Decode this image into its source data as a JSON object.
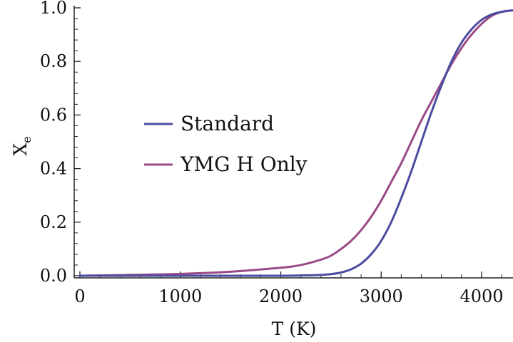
{
  "chart_data": {
    "type": "line",
    "xlabel": "T (K)",
    "ylabel": "X",
    "ylabel_sub": "e",
    "xlim": [
      0,
      4350
    ],
    "ylim": [
      0,
      1.0
    ],
    "x_ticks": [
      "0",
      "1000",
      "2000",
      "3000",
      "4000"
    ],
    "y_ticks": [
      "0.0",
      "0.2",
      "0.4",
      "0.6",
      "0.8",
      "1.0"
    ],
    "legend_position": "center-left",
    "series": [
      {
        "name": "Standard",
        "color": "#4b4ba0",
        "x": [
          0,
          500,
          1000,
          1500,
          2000,
          2200,
          2400,
          2500,
          2600,
          2700,
          2800,
          2900,
          3000,
          3100,
          3200,
          3300,
          3400,
          3500,
          3600,
          3700,
          3800,
          3900,
          4000,
          4100,
          4200,
          4300,
          4350
        ],
        "y": [
          0.0,
          0.0,
          0.0,
          0.0,
          0.0,
          0.001,
          0.003,
          0.006,
          0.012,
          0.024,
          0.045,
          0.08,
          0.13,
          0.2,
          0.29,
          0.39,
          0.5,
          0.61,
          0.71,
          0.8,
          0.87,
          0.92,
          0.955,
          0.975,
          0.985,
          0.99,
          0.99
        ]
      },
      {
        "name": "YMG H Only",
        "color": "#9a4a86",
        "x": [
          0,
          500,
          1000,
          1500,
          2000,
          2200,
          2400,
          2500,
          2600,
          2700,
          2800,
          2900,
          3000,
          3100,
          3200,
          3300,
          3400,
          3500,
          3600,
          3700,
          3800,
          3900,
          4000,
          4100,
          4200,
          4300,
          4350
        ],
        "y": [
          0.0,
          0.003,
          0.007,
          0.015,
          0.03,
          0.04,
          0.06,
          0.075,
          0.1,
          0.13,
          0.17,
          0.22,
          0.28,
          0.35,
          0.42,
          0.5,
          0.58,
          0.65,
          0.72,
          0.79,
          0.85,
          0.9,
          0.94,
          0.97,
          0.985,
          0.99,
          0.99
        ]
      }
    ]
  }
}
